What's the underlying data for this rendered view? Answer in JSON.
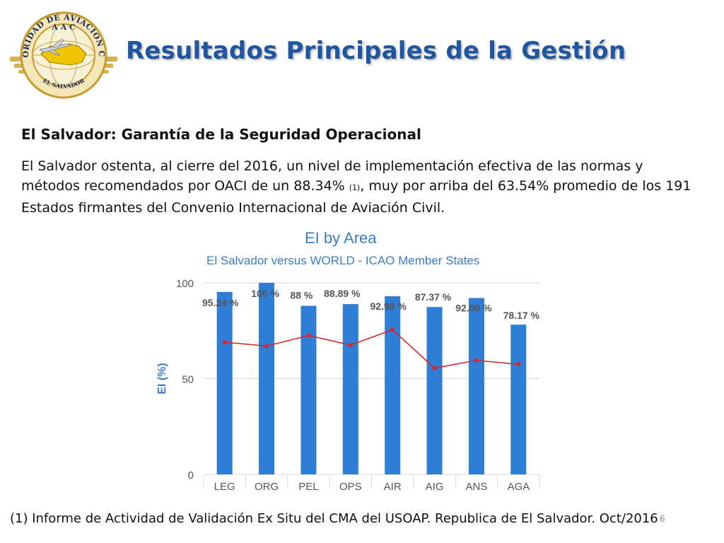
{
  "logo": {
    "ring_text_top": "AUTORIDAD DE AVIACION CIVIL",
    "ring_text_bottom": "EL SALVADOR",
    "center_text": "A A C",
    "colors": {
      "gold": "#d8b14a",
      "ring": "#f3e7b8",
      "map": "#f0c400",
      "navy": "#1c2a5c"
    }
  },
  "header": {
    "title": "Resultados Principales de la Gestión"
  },
  "content": {
    "subtitle": "El Salvador: Garantía de la Seguridad Operacional",
    "paragraph_part1": "El Salvador ostenta, al cierre del 2016, un nivel de implementación efectiva de las normas y métodos recomendados por OACI de un 88.34% ",
    "paragraph_ref": "(1)",
    "paragraph_part2": ", muy por arriba del 63.54% promedio de los 191 Estados firmantes del Convenio Internacional de Aviación Civil."
  },
  "chart_data": {
    "type": "bar",
    "title": "EI by Area",
    "subtitle": "El Salvador versus WORLD - ICAO Member States",
    "ylabel": "EI (%)",
    "ylim": [
      0,
      100
    ],
    "yticks": [
      0,
      50,
      100
    ],
    "grid": true,
    "categories": [
      "LEG",
      "ORG",
      "PEL",
      "OPS",
      "AIR",
      "AIG",
      "ANS",
      "AGA"
    ],
    "series": [
      {
        "type": "bar",
        "values": [
          95.24,
          100,
          88,
          88.89,
          92.98,
          87.37,
          92.06,
          78.17
        ],
        "labels": [
          "95.24 %",
          "100 %",
          "88 %",
          "88.89 %",
          "92.98 %",
          "87.37 %",
          "92.06 %",
          "78.17 %"
        ],
        "color": "#2e7dd6"
      },
      {
        "type": "line",
        "values": [
          69,
          67,
          72.5,
          67.5,
          75.5,
          55.5,
          59.5,
          57.5
        ],
        "color": "#d7262e"
      }
    ],
    "colors": {
      "title": "#3d7cc9",
      "axis_text": "#555555",
      "grid": "#d8d8d8",
      "bar_label": "#555555"
    }
  },
  "footer": {
    "footnote": "(1) Informe de Actividad de Validación Ex Situ del CMA del USOAP. Republica de El Salvador. Oct/2016",
    "page_number": "6"
  }
}
